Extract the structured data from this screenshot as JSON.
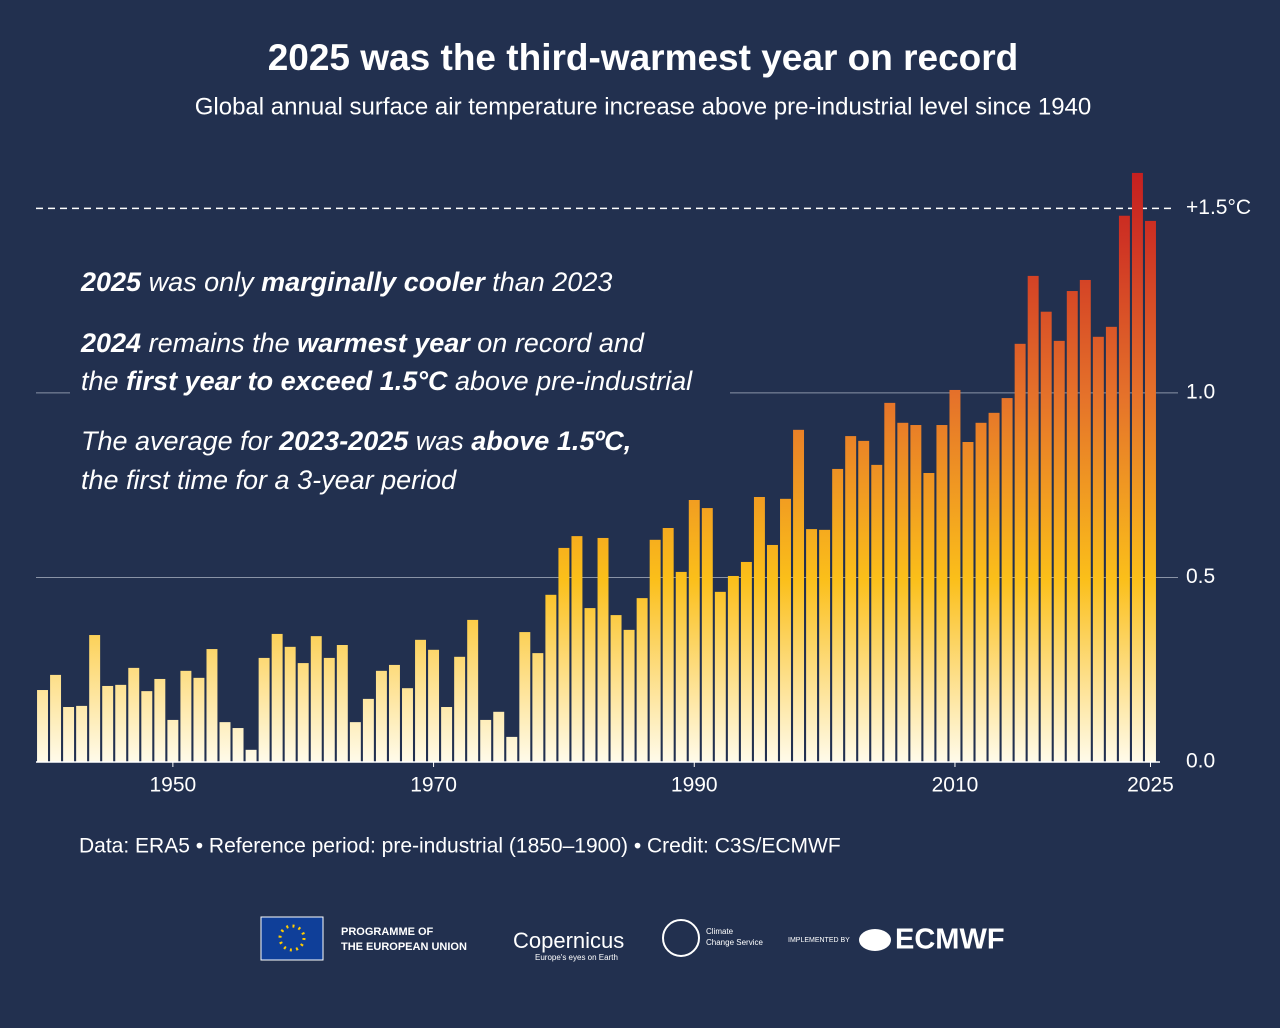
{
  "chart_data": {
    "type": "bar",
    "title": "2025 was the third-warmest year on record",
    "subtitle": "Global annual surface air temperature increase above pre-industrial level since 1940",
    "x": [
      1940,
      1941,
      1942,
      1943,
      1944,
      1945,
      1946,
      1947,
      1948,
      1949,
      1950,
      1951,
      1952,
      1953,
      1954,
      1955,
      1956,
      1957,
      1958,
      1959,
      1960,
      1961,
      1962,
      1963,
      1964,
      1965,
      1966,
      1967,
      1968,
      1969,
      1970,
      1971,
      1972,
      1973,
      1974,
      1975,
      1976,
      1977,
      1978,
      1979,
      1980,
      1981,
      1982,
      1983,
      1984,
      1985,
      1986,
      1987,
      1988,
      1989,
      1990,
      1991,
      1992,
      1993,
      1994,
      1995,
      1996,
      1997,
      1998,
      1999,
      2000,
      2001,
      2002,
      2003,
      2004,
      2005,
      2006,
      2007,
      2008,
      2009,
      2010,
      2011,
      2012,
      2013,
      2014,
      2015,
      2016,
      2017,
      2018,
      2019,
      2020,
      2021,
      2022,
      2023,
      2024,
      2025
    ],
    "values": [
      0.195,
      0.236,
      0.149,
      0.152,
      0.344,
      0.206,
      0.209,
      0.255,
      0.192,
      0.225,
      0.114,
      0.247,
      0.228,
      0.306,
      0.108,
      0.092,
      0.033,
      0.282,
      0.347,
      0.312,
      0.268,
      0.341,
      0.282,
      0.317,
      0.108,
      0.171,
      0.247,
      0.263,
      0.2,
      0.331,
      0.304,
      0.149,
      0.285,
      0.385,
      0.114,
      0.136,
      0.068,
      0.352,
      0.295,
      0.453,
      0.58,
      0.612,
      0.417,
      0.607,
      0.398,
      0.358,
      0.444,
      0.602,
      0.634,
      0.515,
      0.748,
      0.688,
      0.461,
      0.504,
      0.542,
      0.718,
      0.588,
      0.713,
      0.9,
      0.631,
      0.629,
      0.794,
      0.883,
      0.87,
      0.805,
      0.973,
      0.919,
      0.913,
      0.783,
      0.913,
      1.008,
      0.867,
      0.919,
      0.946,
      0.986,
      1.133,
      1.317,
      1.22,
      1.141,
      1.276,
      1.306,
      1.152,
      1.179,
      1.48,
      1.596,
      1.466
    ],
    "xlim": [
      1939.5,
      2025.5
    ],
    "xticks": [
      1950,
      1970,
      1990,
      2010,
      2025
    ],
    "ylim": [
      0,
      1.65
    ],
    "yticks": [
      {
        "value": 0,
        "label": "0.0"
      },
      0.5,
      {
        "value": 1,
        "label": "1.0"
      },
      {
        "value": 1.5,
        "label": "+1.5°C"
      }
    ],
    "grid": true,
    "annotations": [
      [
        {
          "text": "2025",
          "bold": true
        },
        {
          "text": " was only ",
          "bold": false
        },
        {
          "text": "marginally cooler",
          "bold": true
        },
        {
          "text": " than 2023",
          "bold": false
        }
      ],
      [
        {
          "text": "2024",
          "bold": true
        },
        {
          "text": " remains the ",
          "bold": false
        },
        {
          "text": "warmest year",
          "bold": true
        },
        {
          "text": " on record and",
          "bold": false
        }
      ],
      [
        {
          "text": "the ",
          "bold": false
        },
        {
          "text": "first year to exceed 1.5°C",
          "bold": true
        },
        {
          "text": " above pre-industrial",
          "bold": false
        }
      ],
      [
        {
          "text": "The average for ",
          "bold": false
        },
        {
          "text": "2023-2025",
          "bold": true
        },
        {
          "text": " was ",
          "bold": false
        },
        {
          "text": "above 1.5ºC,",
          "bold": true
        }
      ],
      [
        {
          "text": "the first time for a 3-year period",
          "bold": false
        }
      ]
    ],
    "source": "Data: ERA5 • Reference period: pre-industrial (1850–1900) • Credit: C3S/ECMWF",
    "logos": {
      "eu_line1": "PROGRAMME OF",
      "eu_line2": "THE EUROPEAN UNION",
      "copernicus": "Copernicus",
      "copernicus_tagline": "Europe's eyes on Earth",
      "c3s_line1": "Climate",
      "c3s_line2": "Change Service",
      "implemented": "IMPLEMENTED BY",
      "ecmwf": "ECMWF"
    }
  }
}
